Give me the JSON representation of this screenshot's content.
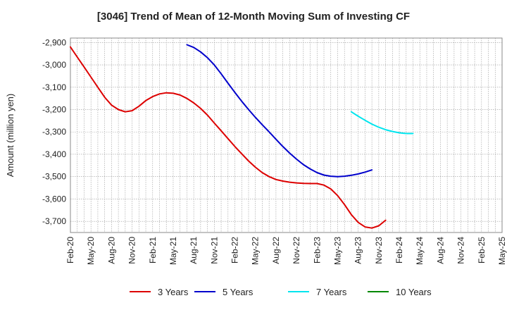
{
  "chart_data": {
    "type": "line",
    "title": "[3046]  Trend of Mean of 12-Month Moving Sum of Investing CF",
    "xlabel": "",
    "ylabel": "Amount (million yen)",
    "ylim": [
      -3750,
      -2880
    ],
    "yticks": [
      -2900,
      -3000,
      -3100,
      -3200,
      -3300,
      -3400,
      -3500,
      -3600,
      -3700
    ],
    "ytick_labels": [
      "-2,900",
      "-3,000",
      "-3,100",
      "-3,200",
      "-3,300",
      "-3,400",
      "-3,500",
      "-3,600",
      "-3,700"
    ],
    "x_months": [
      "2020-02",
      "2025-05"
    ],
    "xtick_labels": [
      "Feb-20",
      "May-20",
      "Aug-20",
      "Nov-20",
      "Feb-21",
      "May-21",
      "Aug-21",
      "Nov-21",
      "Feb-22",
      "May-22",
      "Aug-22",
      "Nov-22",
      "Feb-23",
      "May-23",
      "Aug-23",
      "Nov-23",
      "Feb-24",
      "May-24",
      "Aug-24",
      "Nov-24",
      "Feb-25",
      "May-25"
    ],
    "grid": true,
    "legend_position": "bottom",
    "series": [
      {
        "name": "3 Years",
        "color": "#dd0000",
        "start": "2020-02",
        "values": [
          -2920,
          -2965,
          -3010,
          -3055,
          -3100,
          -3145,
          -3180,
          -3200,
          -3210,
          -3205,
          -3185,
          -3160,
          -3142,
          -3130,
          -3125,
          -3127,
          -3135,
          -3150,
          -3170,
          -3195,
          -3225,
          -3260,
          -3295,
          -3330,
          -3365,
          -3398,
          -3430,
          -3458,
          -3482,
          -3500,
          -3513,
          -3520,
          -3525,
          -3528,
          -3530,
          -3531,
          -3531,
          -3538,
          -3555,
          -3585,
          -3625,
          -3670,
          -3705,
          -3725,
          -3730,
          -3720,
          -3695
        ]
      },
      {
        "name": "5 Years",
        "color": "#0000cc",
        "start": "2021-07",
        "values": [
          -2910,
          -2922,
          -2942,
          -2968,
          -3000,
          -3040,
          -3082,
          -3123,
          -3163,
          -3200,
          -3235,
          -3268,
          -3300,
          -3333,
          -3365,
          -3395,
          -3422,
          -3446,
          -3466,
          -3482,
          -3493,
          -3498,
          -3500,
          -3498,
          -3494,
          -3488,
          -3480,
          -3470
        ]
      },
      {
        "name": "7 Years",
        "color": "#00e5ee",
        "start": "2023-07",
        "values": [
          -3210,
          -3230,
          -3248,
          -3265,
          -3279,
          -3290,
          -3298,
          -3304,
          -3307,
          -3307
        ]
      },
      {
        "name": "10 Years",
        "color": "#008800",
        "start": "2024-08",
        "values": []
      }
    ]
  }
}
